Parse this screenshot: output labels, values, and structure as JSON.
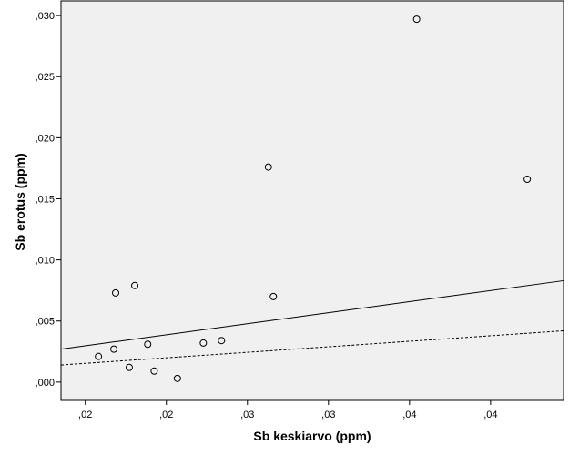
{
  "chart_data": {
    "type": "scatter",
    "xlabel": "Sb keskiarvo (ppm)",
    "ylabel": "Sb erotus (ppm)",
    "xlim": [
      0.01425,
      0.04525
    ],
    "ylim": [
      -0.0015,
      0.0312
    ],
    "x_ticks": [
      {
        "value": 0.01575,
        "label": ",02"
      },
      {
        "value": 0.02075,
        "label": ",02"
      },
      {
        "value": 0.02575,
        "label": ",03"
      },
      {
        "value": 0.03075,
        "label": ",03"
      },
      {
        "value": 0.03575,
        "label": ",04"
      },
      {
        "value": 0.04075,
        "label": ",04"
      }
    ],
    "y_ticks": [
      {
        "value": 0.0,
        "label": ",000"
      },
      {
        "value": 0.005,
        "label": ",005"
      },
      {
        "value": 0.01,
        "label": ",010"
      },
      {
        "value": 0.015,
        "label": ",015"
      },
      {
        "value": 0.02,
        "label": ",020"
      },
      {
        "value": 0.025,
        "label": ",025"
      },
      {
        "value": 0.03,
        "label": ",030"
      }
    ],
    "grid": false,
    "points": [
      {
        "x": 0.01656,
        "y": 0.0021
      },
      {
        "x": 0.01751,
        "y": 0.0027
      },
      {
        "x": 0.01762,
        "y": 0.0073
      },
      {
        "x": 0.01846,
        "y": 0.0012
      },
      {
        "x": 0.0188,
        "y": 0.0079
      },
      {
        "x": 0.0196,
        "y": 0.0031
      },
      {
        "x": 0.02,
        "y": 0.0009
      },
      {
        "x": 0.02143,
        "y": 0.0003
      },
      {
        "x": 0.02303,
        "y": 0.0032
      },
      {
        "x": 0.02415,
        "y": 0.0034
      },
      {
        "x": 0.02704,
        "y": 0.0176
      },
      {
        "x": 0.02735,
        "y": 0.007
      },
      {
        "x": 0.03619,
        "y": 0.0297
      },
      {
        "x": 0.04301,
        "y": 0.0166
      }
    ],
    "lines": [
      {
        "style": "solid",
        "x": [
          0.01425,
          0.04525
        ],
        "y": [
          0.0027,
          0.0083
        ]
      },
      {
        "style": "dashed",
        "x": [
          0.01425,
          0.04525
        ],
        "y": [
          0.0014,
          0.0042
        ]
      }
    ]
  }
}
